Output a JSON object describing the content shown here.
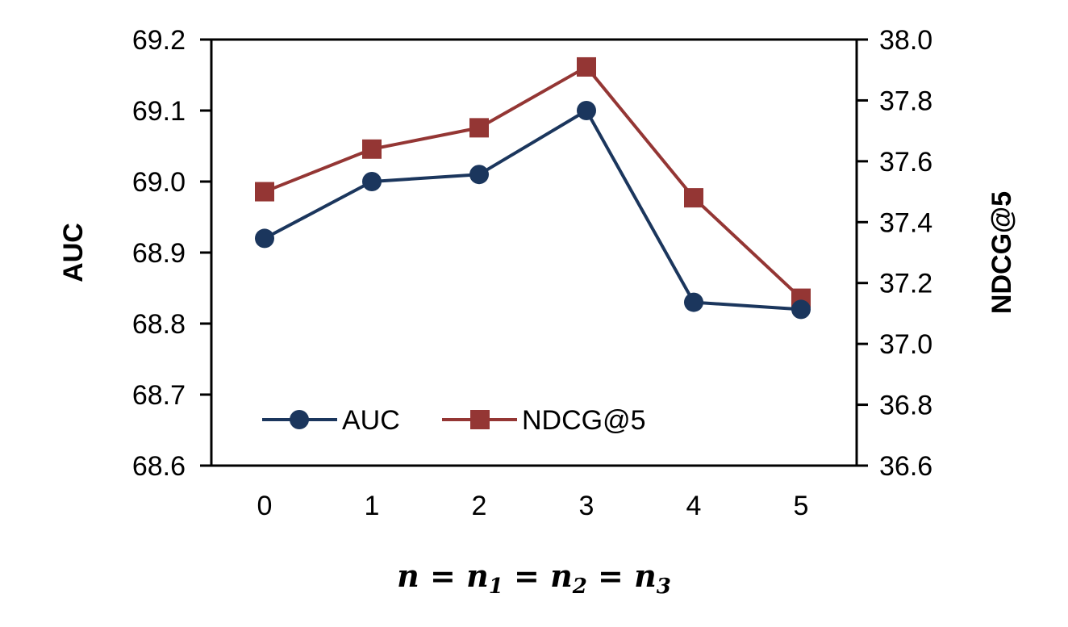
{
  "chart_data": {
    "type": "line",
    "x": [
      0,
      1,
      2,
      3,
      4,
      5
    ],
    "xticks": [
      "0",
      "1",
      "2",
      "3",
      "4",
      "5"
    ],
    "xlabel": {
      "base": "n = n",
      "sub1": "1",
      "mid1": " = n",
      "sub2": "2",
      "mid2": " = n",
      "sub3": "3"
    },
    "y_left": {
      "label": "AUC",
      "lim": [
        68.6,
        69.2
      ],
      "ticks": [
        "68.6",
        "68.7",
        "68.8",
        "68.9",
        "69.0",
        "69.1",
        "69.2"
      ]
    },
    "y_right": {
      "label": "NDCG@5",
      "lim": [
        36.6,
        38.0
      ],
      "ticks": [
        "36.6",
        "36.8",
        "37.0",
        "37.2",
        "37.4",
        "37.6",
        "37.8",
        "38.0"
      ]
    },
    "series": [
      {
        "name": "AUC",
        "axis": "left",
        "marker": "circle",
        "color": "#1b365d",
        "values": [
          68.92,
          69.0,
          69.01,
          69.1,
          68.83,
          68.82
        ]
      },
      {
        "name": "NDCG@5",
        "axis": "right",
        "marker": "square",
        "color": "#943634",
        "values": [
          37.5,
          37.64,
          37.71,
          37.91,
          37.48,
          37.15
        ]
      }
    ],
    "grid": false,
    "legend": "bottom-left inside"
  }
}
